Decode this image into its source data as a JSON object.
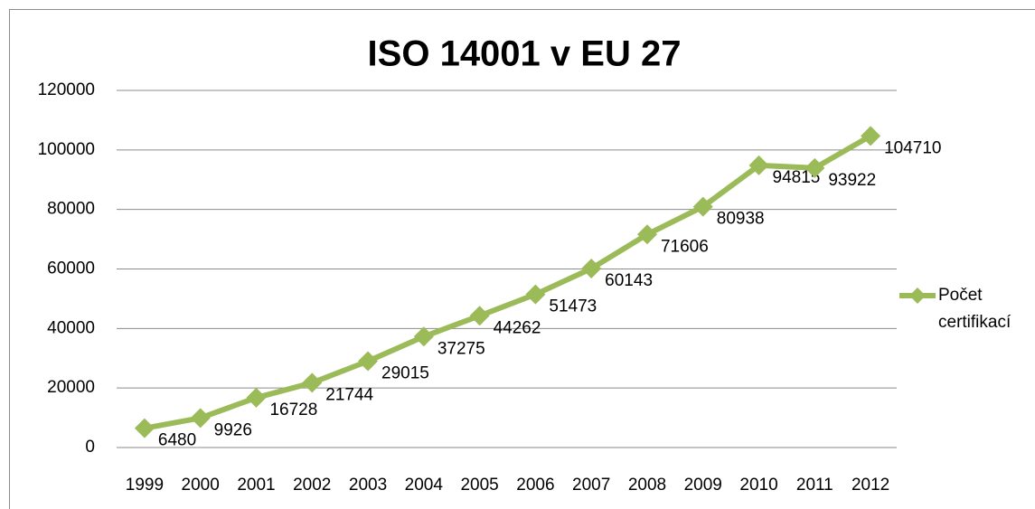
{
  "chart_data": {
    "type": "line",
    "title": "ISO 14001 v EU 27",
    "categories": [
      "1999",
      "2000",
      "2001",
      "2002",
      "2003",
      "2004",
      "2005",
      "2006",
      "2007",
      "2008",
      "2009",
      "2010",
      "2011",
      "2012"
    ],
    "series": [
      {
        "name": "Počet certifikací",
        "color": "#9bbb59",
        "values": [
          6480,
          9926,
          16728,
          21744,
          29015,
          37275,
          44262,
          51473,
          60143,
          71606,
          80938,
          94815,
          93922,
          104710
        ]
      }
    ],
    "ylim": [
      0,
      120000
    ],
    "yticks": [
      0,
      20000,
      40000,
      60000,
      80000,
      100000,
      120000
    ],
    "grid": true,
    "legend": "right"
  }
}
